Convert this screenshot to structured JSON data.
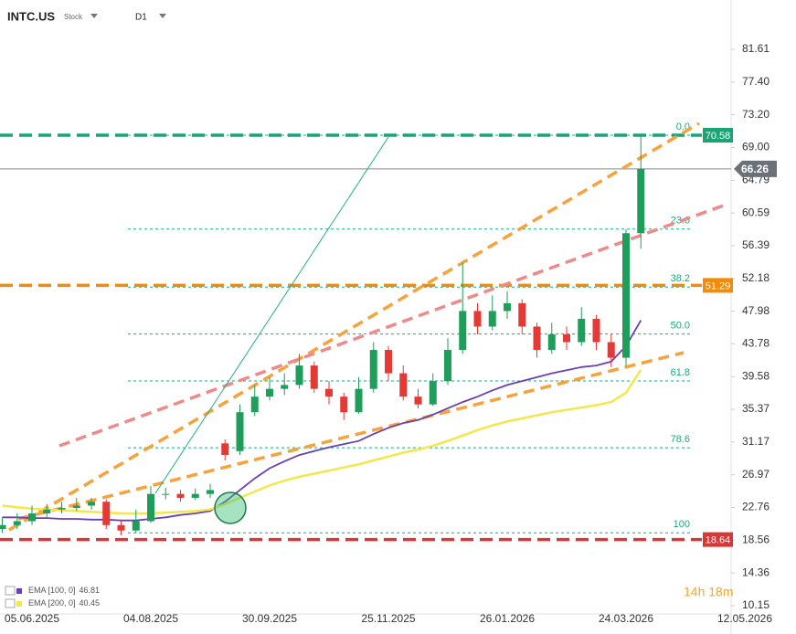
{
  "header": {
    "symbol": "INTC.US",
    "kind": "Stock",
    "interval": "D1",
    "countdown": "14h 18m"
  },
  "chart_data": {
    "type": "candlestick",
    "categories": [
      null,
      null,
      "05.06.2025",
      null,
      null,
      null,
      null,
      null,
      null,
      null,
      "04.08.2025",
      null,
      null,
      null,
      null,
      null,
      null,
      null,
      "30.09.2025",
      null,
      null,
      null,
      null,
      null,
      null,
      null,
      "25.11.2025",
      null,
      null,
      null,
      null,
      null,
      null,
      null,
      "26.01.2026",
      null,
      null,
      null,
      null,
      null,
      null,
      null,
      "24.03.2026",
      null,
      null,
      null,
      null,
      null,
      null,
      null,
      "12.05.2026"
    ],
    "open": [
      20,
      20.5,
      21,
      22,
      22.5,
      22.7,
      23,
      23.5,
      20.5,
      19.8,
      21,
      24.5,
      24.5,
      24,
      24.5,
      31,
      30,
      35,
      37,
      38,
      38.5,
      41,
      38,
      37,
      35,
      38,
      43,
      40,
      37,
      36,
      39,
      43,
      48,
      46,
      48,
      49,
      46,
      43,
      45,
      44,
      47,
      44,
      42,
      58,
      null,
      null,
      null,
      null,
      null,
      null,
      null
    ],
    "high": [
      21.5,
      22,
      23,
      23.2,
      23.5,
      24,
      24,
      23.8,
      21,
      22.5,
      25.5,
      25.3,
      25,
      25.2,
      25.8,
      31.5,
      36,
      38.5,
      39.5,
      40,
      42.5,
      41.5,
      39,
      37.5,
      39.5,
      44,
      43.5,
      41,
      38,
      40,
      44.5,
      54.2,
      49,
      50,
      50.5,
      49.5,
      46.5,
      46.5,
      46,
      48.5,
      47.5,
      45,
      58.5,
      70.4,
      null,
      null,
      null,
      null,
      null,
      null,
      null
    ],
    "low": [
      19.5,
      20,
      20.5,
      21.5,
      22,
      22.3,
      22.5,
      20,
      19.2,
      19.5,
      20.8,
      23.8,
      23.5,
      23.7,
      24,
      28.8,
      29.5,
      34.5,
      36.5,
      37.2,
      38,
      37.5,
      36,
      34,
      34.8,
      37.5,
      39,
      36.5,
      35.5,
      35.8,
      38.5,
      42.5,
      45,
      45.5,
      47,
      45,
      42,
      42.5,
      43,
      43.5,
      43,
      40.8,
      41,
      56,
      null,
      null,
      null,
      null,
      null,
      null,
      null
    ],
    "close": [
      20.5,
      21,
      22,
      22.5,
      22.7,
      23,
      23.5,
      20.5,
      19.8,
      21,
      24.5,
      24.5,
      24,
      24.5,
      25,
      29.5,
      35,
      37,
      38,
      38.5,
      41,
      38,
      37,
      35,
      38,
      43,
      40,
      37,
      36,
      39,
      43,
      48,
      46,
      48,
      49,
      46,
      43,
      45,
      44,
      47,
      44,
      42,
      58,
      66.26,
      null,
      null,
      null,
      null,
      null,
      null,
      null
    ],
    "up_color": "#1e9e5a",
    "down_color": "#e53935",
    "series": [
      {
        "name": "EMA [100, 0]",
        "color": "#6a3fb5",
        "values": [
          21.5,
          21.5,
          21.4,
          21.4,
          21.3,
          21.3,
          21.2,
          21.2,
          21.1,
          21.1,
          21.3,
          21.5,
          21.8,
          22,
          22.3,
          23.5,
          25,
          26.5,
          27.8,
          28.7,
          29.5,
          30,
          30.5,
          30.9,
          31.3,
          32.2,
          33,
          33.6,
          34,
          34.7,
          35.5,
          36.3,
          37,
          37.8,
          38.5,
          39,
          39.5,
          40,
          40.4,
          40.8,
          41,
          41.5,
          43.5,
          46.81,
          null,
          null,
          null,
          null,
          null,
          null,
          null
        ]
      },
      {
        "name": "EMA [200, 0]",
        "color": "#f2e84a",
        "values": [
          23,
          22.8,
          22.6,
          22.5,
          22.4,
          22.3,
          22.2,
          22.1,
          22,
          22,
          22,
          22.1,
          22.2,
          22.3,
          22.5,
          23.2,
          24,
          24.8,
          25.6,
          26.2,
          26.7,
          27.1,
          27.5,
          27.9,
          28.3,
          28.8,
          29.3,
          29.8,
          30.2,
          30.7,
          31.3,
          32,
          32.7,
          33.3,
          33.8,
          34.2,
          34.6,
          35,
          35.3,
          35.6,
          35.9,
          36.3,
          37.5,
          40.45,
          null,
          null,
          null,
          null,
          null,
          null,
          null
        ]
      }
    ],
    "ylim": [
      9.56,
      87.01
    ],
    "yticks": [
      81.61,
      {
        "value": 77.4,
        "label": "77.40"
      },
      {
        "value": 73.2,
        "label": "73.20"
      },
      {
        "value": 69.0,
        "label": "69.00"
      },
      64.79,
      60.59,
      56.39,
      52.18,
      47.98,
      43.78,
      39.58,
      35.37,
      31.17,
      26.97,
      22.76,
      18.56,
      14.36,
      10.15
    ],
    "levels": [
      {
        "value": 70.58,
        "color": "#17a673"
      },
      {
        "value": 51.29,
        "color": "#f58a07"
      },
      {
        "value": 18.64,
        "color": "#d93636"
      }
    ],
    "last_price": 66.26,
    "fib": {
      "high": 70.58,
      "low": 19.5,
      "color": "#1bab7d",
      "levels": [
        {
          "value": 0,
          "label": "0.0"
        },
        23.6,
        38.2,
        {
          "value": 50,
          "label": "50.0"
        },
        61.8,
        78.6,
        100
      ]
    },
    "grid": false
  }
}
